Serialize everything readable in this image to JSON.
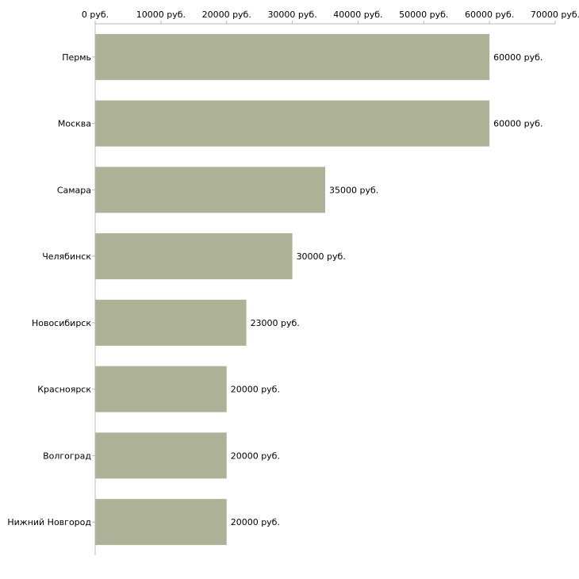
{
  "chart_data": {
    "type": "bar",
    "orientation": "horizontal",
    "title": "",
    "xlabel": "",
    "ylabel": "",
    "categories": [
      "Пермь",
      "Москва",
      "Самара",
      "Челябинск",
      "Новосибирск",
      "Красноярск",
      "Волгоград",
      "Нижний Новгород"
    ],
    "values": [
      60000,
      60000,
      35000,
      30000,
      23000,
      20000,
      20000,
      20000
    ],
    "value_labels": [
      "60000 руб.",
      "60000 руб.",
      "35000 руб.",
      "30000 руб.",
      "23000 руб.",
      "20000 руб.",
      "20000 руб.",
      "20000 руб."
    ],
    "xlim": [
      0,
      70000
    ],
    "x_ticks": [
      0,
      10000,
      20000,
      30000,
      40000,
      50000,
      60000,
      70000
    ],
    "x_tick_labels": [
      "0 руб.",
      "10000 руб.",
      "20000 руб.",
      "30000 руб.",
      "40000 руб.",
      "50000 руб.",
      "60000 руб.",
      "70000 руб."
    ],
    "axis_position": "top",
    "grid": false,
    "legend": "none",
    "bar_color": "#adb297",
    "axis_color": "#b8b8b8"
  }
}
